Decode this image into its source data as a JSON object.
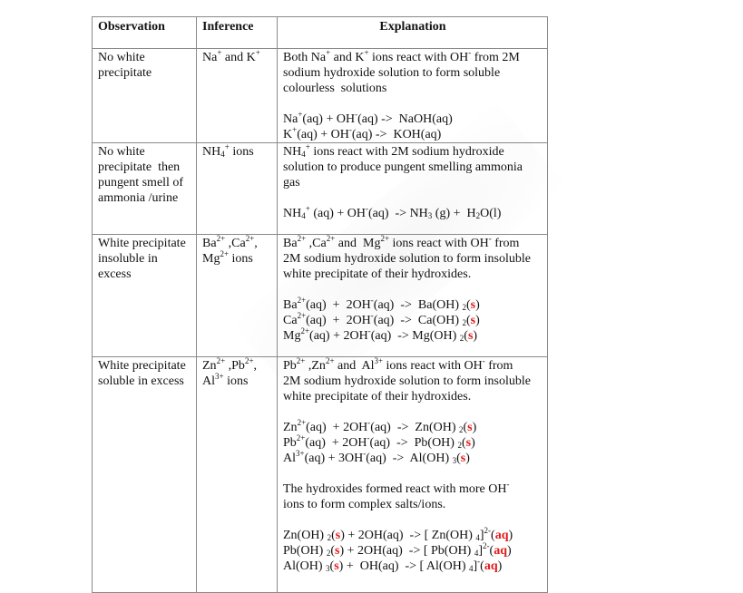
{
  "headers": [
    "Observation",
    "Inference",
    "Explanation"
  ],
  "rows": [
    {
      "observation": [
        "No white",
        "precipitate"
      ],
      "inference": [
        "Na^{+} and K^{+}"
      ],
      "explanation": [
        "Both Na^{+} and K^{+} ions react with OH^{-} from 2M",
        "sodium hydroxide solution to form soluble",
        "colourless  solutions",
        "",
        "Na^{+}(aq) + OH^{-}(aq) ->  NaOH(aq)",
        "K^{+}(aq) + OH^{-}(aq) ->  KOH(aq)"
      ]
    },
    {
      "observation": [
        "No white",
        "precipitate  then",
        "pungent smell of",
        "ammonia /urine"
      ],
      "inference": [
        "NH_{4}^{+} ions"
      ],
      "explanation": [
        "NH_{4}^{+} ions react with 2M sodium hydroxide",
        "solution to produce pungent smelling ammonia",
        "gas",
        "",
        "NH_{4}^{+} (aq) + OH^{-}(aq)  -> NH_{3} (g) +  H_{2}O(l)"
      ]
    },
    {
      "observation": [
        "White precipitate",
        "insoluble in",
        "excess"
      ],
      "inference": [
        "Ba^{2+} ,Ca^{2+},",
        "Mg^{2+} ions"
      ],
      "explanation": [
        "Ba^{2+} ,Ca^{2+} and  Mg^{2+} ions react with OH^{-} from",
        "2M sodium hydroxide solution to form insoluble",
        "white precipitate of their hydroxides.",
        "",
        "Ba^{2+}(aq)  +  2OH^{-}(aq)  ->  Ba(OH) _{2}(*{s})",
        "Ca^{2+}(aq)  +  2OH^{-}(aq)  ->  Ca(OH) _{2}(*{s})",
        "Mg^{2+}(aq) + 2OH^{-}(aq)  -> Mg(OH) _{2}(*{s})"
      ]
    },
    {
      "observation": [
        "White precipitate",
        "soluble in excess"
      ],
      "inference": [
        "Zn^{2+} ,Pb^{2+},",
        "Al^{3+} ions"
      ],
      "explanation": [
        "Pb^{2+} ,Zn^{2+} and  Al^{3+} ions react with OH^{-} from",
        "2M sodium hydroxide solution to form insoluble",
        "white precipitate of their hydroxides.",
        "",
        "Zn^{2+}(aq)  + 2OH^{-}(aq)  ->  Zn(OH) _{2}(*{s})",
        "Pb^{2+}(aq)  + 2OH^{-}(aq)  ->  Pb(OH) _{2}(*{s})",
        "Al^{3+}(aq) + 3OH^{-}(aq)  ->  Al(OH) _{3}(*{s})",
        "",
        "The hydroxides formed react with more OH^{-}",
        "ions to form complex salts/ions.",
        "",
        "Zn(OH) _{2}(*{s}) + 2OH(aq)  -> [ Zn(OH) _{4}]^{2-}(*{aq})",
        "Pb(OH) _{2}(*{s}) + 2OH(aq)  -> [ Pb(OH) _{4}]^{2-}(*{aq})",
        "Al(OH) _{3}(*{s}) +  OH(aq)  -> [ Al(OH) _{4}]^{-}(*{aq})"
      ]
    }
  ],
  "colors": {
    "state_highlight": "#e31b1b",
    "border": "#8a8a8a"
  }
}
